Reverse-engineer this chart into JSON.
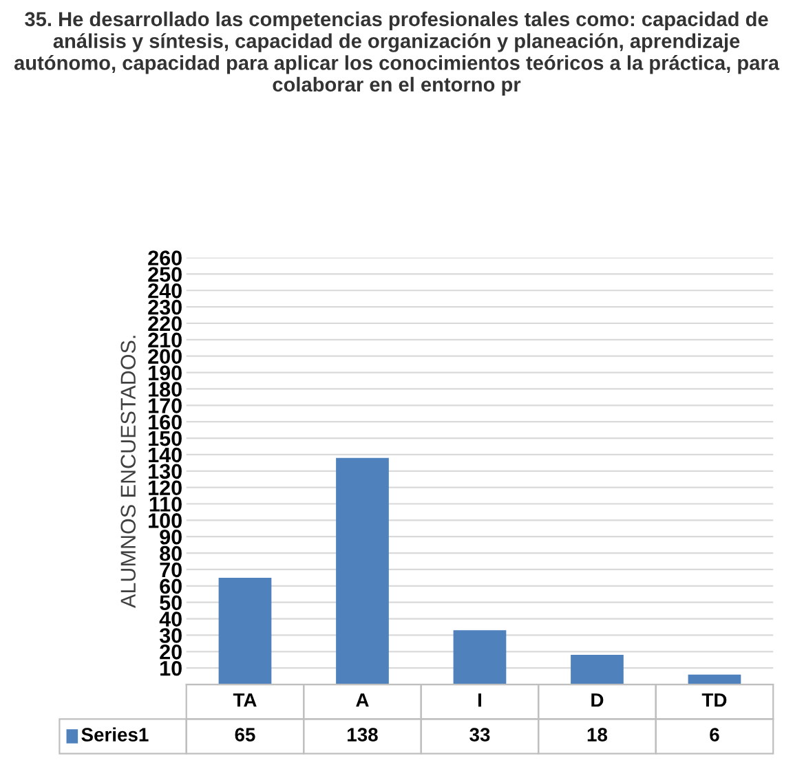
{
  "chart_data": {
    "type": "bar",
    "title": "35. He desarrollado las competencias profesionales tales como: capacidad de análisis y síntesis, capacidad de organización y planeación, aprendizaje autónomo, capacidad para aplicar los conocimientos teóricos a la práctica, para colaborar en el entorno pr",
    "ylabel": "ALUMNOS ENCUESTADOS.",
    "categories": [
      "TA",
      "A",
      "I",
      "D",
      "TD"
    ],
    "series": [
      {
        "name": "Series1",
        "color": "#4f81bd",
        "values": [
          65,
          138,
          33,
          18,
          6
        ]
      }
    ],
    "ylim": [
      0,
      260
    ],
    "yticks": [
      10,
      20,
      30,
      40,
      50,
      60,
      70,
      80,
      90,
      100,
      110,
      120,
      130,
      140,
      150,
      160,
      170,
      180,
      190,
      200,
      210,
      220,
      230,
      240,
      250,
      260
    ],
    "grid": "y",
    "data_labels": true
  }
}
